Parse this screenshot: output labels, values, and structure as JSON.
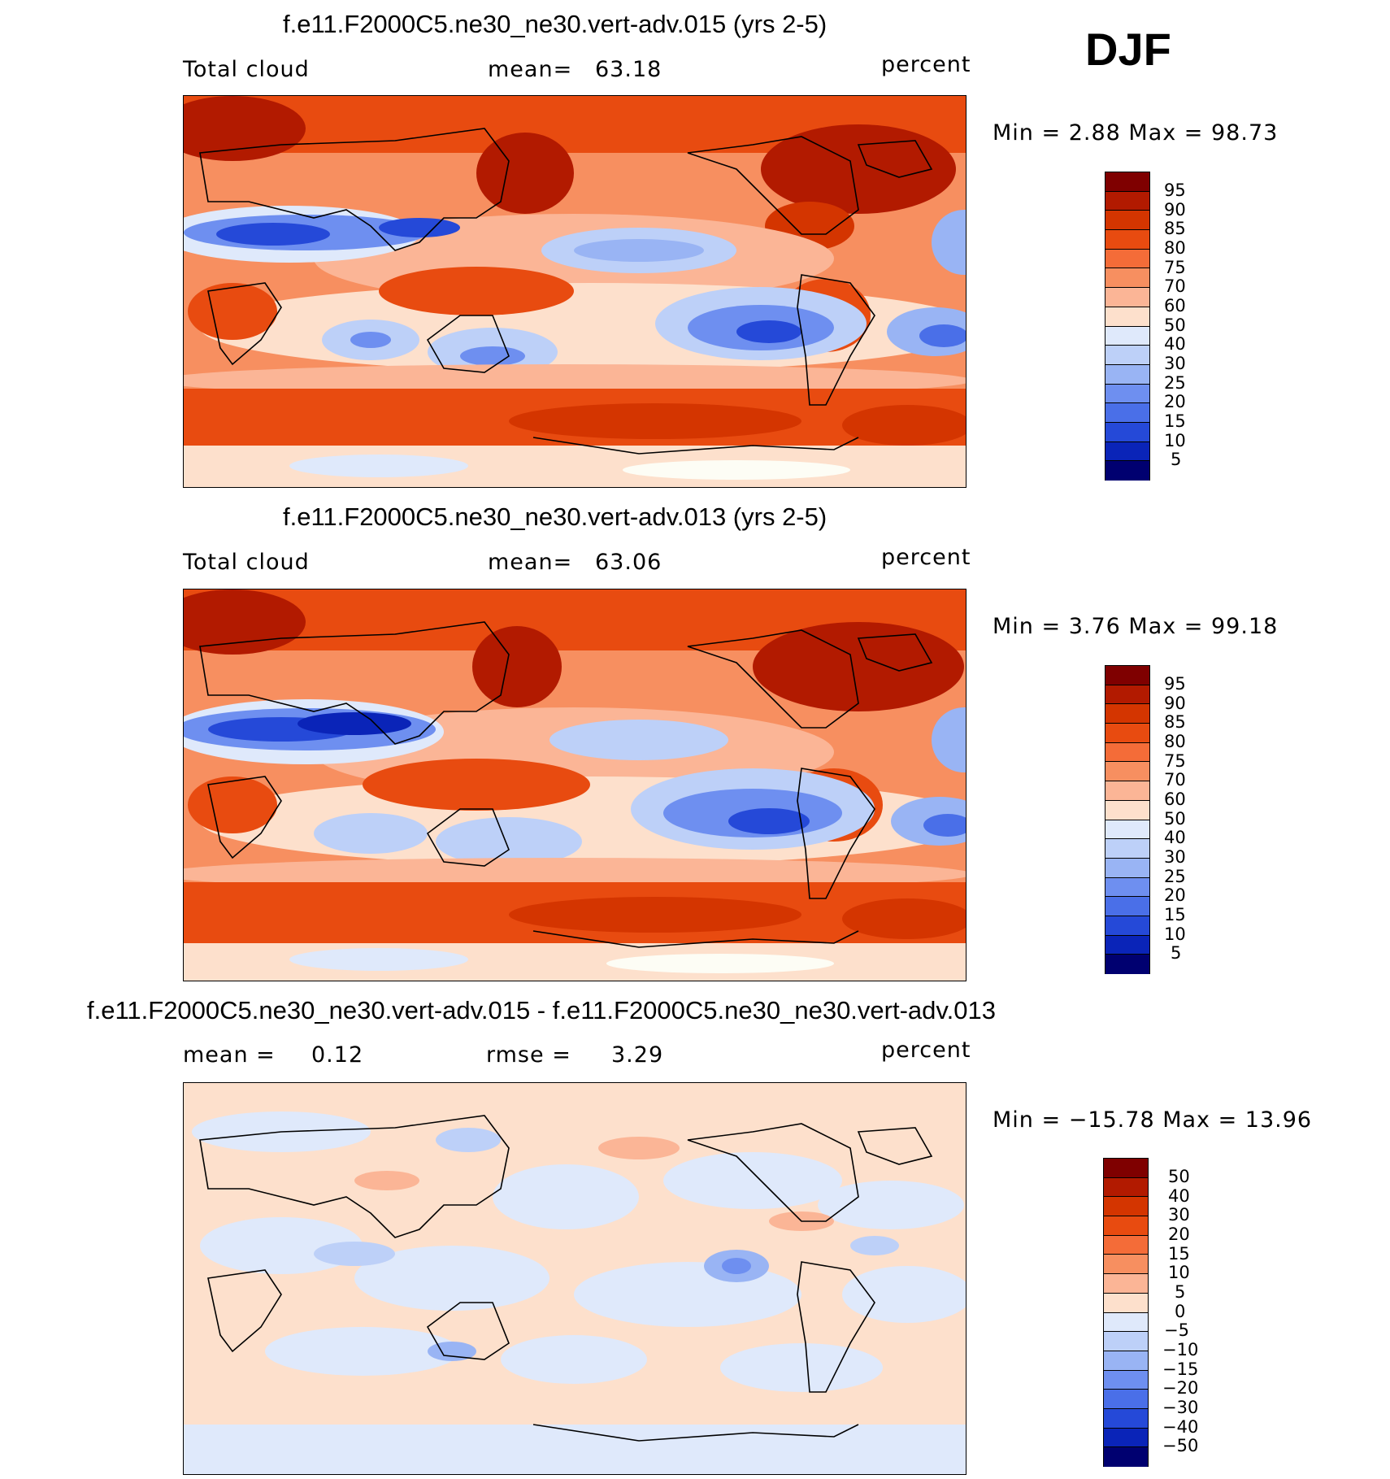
{
  "season": "DJF",
  "panels": [
    {
      "title": "f.e11.F2000C5.ne30_ne30.vert-adv.015 (yrs 2-5)",
      "left_label": "Total cloud",
      "mid_label": "mean=",
      "mid_value": "63.18",
      "units": "percent",
      "minmax": "Min =    2.88 Max =   98.73",
      "colorbar_ticks": [
        "95",
        "90",
        "85",
        "80",
        "75",
        "70",
        "60",
        "50",
        "40",
        "30",
        "25",
        "20",
        "15",
        "10",
        "5"
      ]
    },
    {
      "title": "f.e11.F2000C5.ne30_ne30.vert-adv.013 (yrs 2-5)",
      "left_label": "Total cloud",
      "mid_label": "mean=",
      "mid_value": "63.06",
      "units": "percent",
      "minmax": "Min =    3.76 Max =   99.18",
      "colorbar_ticks": [
        "95",
        "90",
        "85",
        "80",
        "75",
        "70",
        "60",
        "50",
        "40",
        "30",
        "25",
        "20",
        "15",
        "10",
        "5"
      ]
    },
    {
      "title": "f.e11.F2000C5.ne30_ne30.vert-adv.015 - f.e11.F2000C5.ne30_ne30.vert-adv.013",
      "left_label": "mean =",
      "left_value": "0.12",
      "mid_label": "rmse =",
      "mid_value": "3.29",
      "units": "percent",
      "minmax": "Min = −15.78 Max =   13.96",
      "colorbar_ticks": [
        "50",
        "40",
        "30",
        "20",
        "15",
        "10",
        "5",
        "0",
        "−5",
        "−10",
        "−15",
        "−20",
        "−30",
        "−40",
        "−50"
      ]
    }
  ],
  "colors": {
    "levels": [
      "#7f0000",
      "#b21a00",
      "#d43500",
      "#e84b10",
      "#f46c38",
      "#f78f60",
      "#fbb596",
      "#fde0cc",
      "#fdfdf5",
      "#dfe9fb",
      "#bdd0f8",
      "#99b4f4",
      "#6e8ff0",
      "#4a6fe8",
      "#2549d8",
      "#0a24b8",
      "#031090",
      "#000070"
    ]
  },
  "chart_data": [
    {
      "type": "heatmap",
      "title": "f.e11.F2000C5.ne30_ne30.vert-adv.015 (yrs 2-5)",
      "variable": "Total cloud",
      "units": "percent",
      "mean": 63.18,
      "min": 2.88,
      "max": 98.73,
      "contour_levels": [
        5,
        10,
        15,
        20,
        25,
        30,
        40,
        50,
        60,
        70,
        75,
        80,
        85,
        90,
        95
      ]
    },
    {
      "type": "heatmap",
      "title": "f.e11.F2000C5.ne30_ne30.vert-adv.013 (yrs 2-5)",
      "variable": "Total cloud",
      "units": "percent",
      "mean": 63.06,
      "min": 3.76,
      "max": 99.18,
      "contour_levels": [
        5,
        10,
        15,
        20,
        25,
        30,
        40,
        50,
        60,
        70,
        75,
        80,
        85,
        90,
        95
      ]
    },
    {
      "type": "heatmap",
      "title": "f.e11.F2000C5.ne30_ne30.vert-adv.015 - f.e11.F2000C5.ne30_ne30.vert-adv.013",
      "units": "percent",
      "mean": 0.12,
      "rmse": 3.29,
      "min": -15.78,
      "max": 13.96,
      "contour_levels": [
        -50,
        -40,
        -30,
        -20,
        -15,
        -10,
        -5,
        0,
        5,
        10,
        15,
        20,
        30,
        40,
        50
      ]
    }
  ]
}
